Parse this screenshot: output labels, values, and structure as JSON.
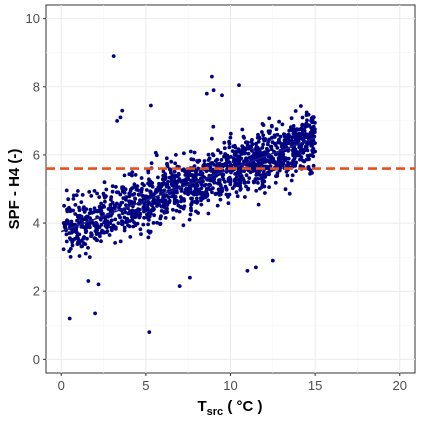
{
  "chart_data": {
    "type": "scatter",
    "title": "",
    "xlabel_main": "T",
    "xlabel_sub": "src",
    "xlabel_unit": " ( °C )",
    "ylabel": "SPF - H4 (-)",
    "xlim": [
      0,
      20
    ],
    "ylim": [
      0,
      10
    ],
    "x_ticks": [
      "0",
      "5",
      "10",
      "15",
      "20"
    ],
    "y_ticks": [
      "0",
      "2",
      "4",
      "6",
      "8",
      "10"
    ],
    "grid": true,
    "point_color": "#000080",
    "trend_color": "#1a1a8c",
    "reference_color": "#e8501e",
    "reference_line_y": 5.6,
    "trend_line": {
      "x": [
        0,
        15
      ],
      "y": [
        3.75,
        6.5
      ]
    },
    "outliers": {
      "x": [
        3.1,
        5.3,
        8.9,
        9.0,
        10.5,
        8.6,
        9.5,
        3.5,
        3.6,
        3.3,
        0.5,
        2.0,
        5.2,
        7.6,
        2.2,
        1.6,
        11.0,
        12.5,
        7.0,
        11.5
      ],
      "y": [
        8.9,
        7.45,
        8.3,
        7.9,
        8.05,
        7.8,
        7.75,
        7.1,
        7.3,
        7.0,
        1.2,
        1.35,
        0.8,
        2.4,
        2.2,
        2.3,
        2.6,
        2.9,
        2.15,
        2.7
      ]
    },
    "cloud": {
      "count": 1500,
      "x_min": 0.1,
      "x_max": 15.0,
      "intercept": 3.75,
      "slope": 0.18,
      "spread": 0.42
    }
  }
}
